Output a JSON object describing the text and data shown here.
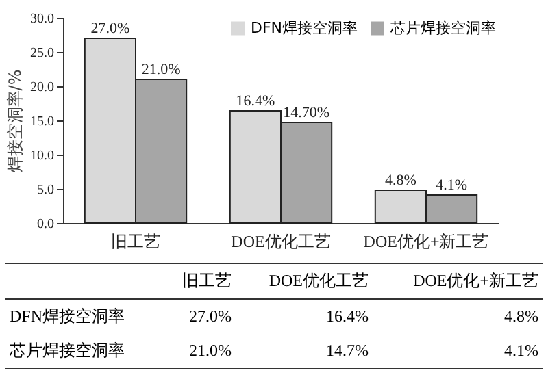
{
  "chart_data": {
    "type": "bar",
    "ylabel": "焊接空洞率/%",
    "categories": [
      "旧工艺",
      "DOE优化工艺",
      "DOE优化+新工艺"
    ],
    "series": [
      {
        "name": "DFN焊接空洞率",
        "color": "#d9d9d9",
        "values": [
          27.0,
          16.4,
          4.8
        ],
        "value_labels": [
          "27.0%",
          "16.4%",
          "4.8%"
        ]
      },
      {
        "name": "芯片焊接空洞率",
        "color": "#a6a6a6",
        "values": [
          21.0,
          14.7,
          4.1
        ],
        "value_labels": [
          "21.0%",
          "14.70%",
          "4.1%"
        ]
      }
    ],
    "ylim": [
      0,
      30
    ],
    "yticks": [
      {
        "value": 0,
        "label": "0.0"
      },
      {
        "value": 5,
        "label": "5.0"
      },
      {
        "value": 10,
        "label": "10.0"
      },
      {
        "value": 15,
        "label": "15.0"
      },
      {
        "value": 20,
        "label": "20.0"
      },
      {
        "value": 25,
        "label": "25.0"
      },
      {
        "value": 30,
        "label": "30.0"
      }
    ],
    "grid": false,
    "legend": "top right",
    "annotations": [
      "27.0%",
      "16.4%",
      "4.8%",
      "21.0%",
      "14.7%",
      "4.1%"
    ]
  }
}
